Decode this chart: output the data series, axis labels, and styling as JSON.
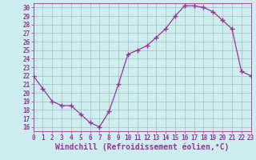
{
  "x": [
    0,
    1,
    2,
    3,
    4,
    5,
    6,
    7,
    8,
    9,
    10,
    11,
    12,
    13,
    14,
    15,
    16,
    17,
    18,
    19,
    20,
    21,
    22,
    23
  ],
  "y": [
    22,
    20.5,
    19,
    18.5,
    18.5,
    17.5,
    16.5,
    16,
    17.8,
    21,
    24.5,
    25,
    25.5,
    26.5,
    27.5,
    29,
    30.2,
    30.2,
    30,
    29.5,
    28.5,
    27.5,
    22.5,
    22
  ],
  "line_color": "#993399",
  "bg_color": "#cceeee",
  "grid_color": "#aabbbb",
  "xlabel": "Windchill (Refroidissement éolien,°C)",
  "xlim": [
    0,
    23
  ],
  "ylim": [
    15.5,
    30.5
  ],
  "yticks": [
    16,
    17,
    18,
    19,
    20,
    21,
    22,
    23,
    24,
    25,
    26,
    27,
    28,
    29,
    30
  ],
  "xticks": [
    0,
    1,
    2,
    3,
    4,
    5,
    6,
    7,
    8,
    9,
    10,
    11,
    12,
    13,
    14,
    15,
    16,
    17,
    18,
    19,
    20,
    21,
    22,
    23
  ],
  "tick_fontsize": 5.5,
  "xlabel_fontsize": 7.0
}
